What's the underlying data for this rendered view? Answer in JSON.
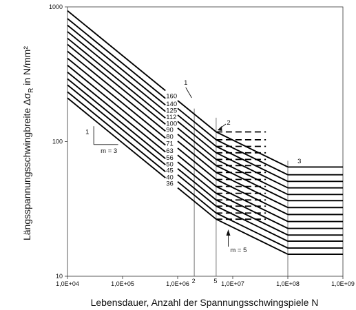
{
  "chart_data": {
    "type": "line",
    "title": "",
    "xlabel": "Lebensdauer, Anzahl der Spannungsschwingspiele N",
    "ylabel_main": "Längsspannungsschwingbreite Δσ",
    "ylabel_sub": "R",
    "ylabel_unit": " in N/mm²",
    "x_scale": "log",
    "y_scale": "log",
    "xlim": [
      10000,
      1000000000
    ],
    "ylim": [
      10,
      1000
    ],
    "x_ticks": [
      10000,
      100000,
      1000000,
      10000000,
      100000000,
      1000000000
    ],
    "x_tick_labels": [
      "1,0E+04",
      "1,0E+05",
      "1,0E+06",
      "1,0E+07",
      "1,0E+08",
      "1,0E+09"
    ],
    "y_ticks": [
      10,
      100,
      1000
    ],
    "y_tick_labels": [
      "10",
      "100",
      "1000"
    ],
    "grid": false,
    "slope_m1": 3,
    "slope_m2": 5,
    "N_reference": 2000000,
    "N_knee": 5000000,
    "N_cutoff": 100000000,
    "detail_categories": [
      160,
      140,
      125,
      112,
      100,
      90,
      80,
      71,
      63,
      56,
      50,
      45,
      40,
      36
    ],
    "detail_category_labels": [
      "160",
      "140",
      "125",
      "112",
      "100",
      "90",
      "80",
      "71",
      "63",
      "56",
      "50",
      "45",
      "40",
      "36"
    ],
    "dashed_extension_to": 40000000,
    "annotations": {
      "marker_1": "1",
      "marker_2": "2",
      "marker_3": "3",
      "line_label_2": "2",
      "line_label_5": "5",
      "slope_triangle_1": "1",
      "slope_m3": "m = 3",
      "slope_m5": "m = 5"
    }
  }
}
